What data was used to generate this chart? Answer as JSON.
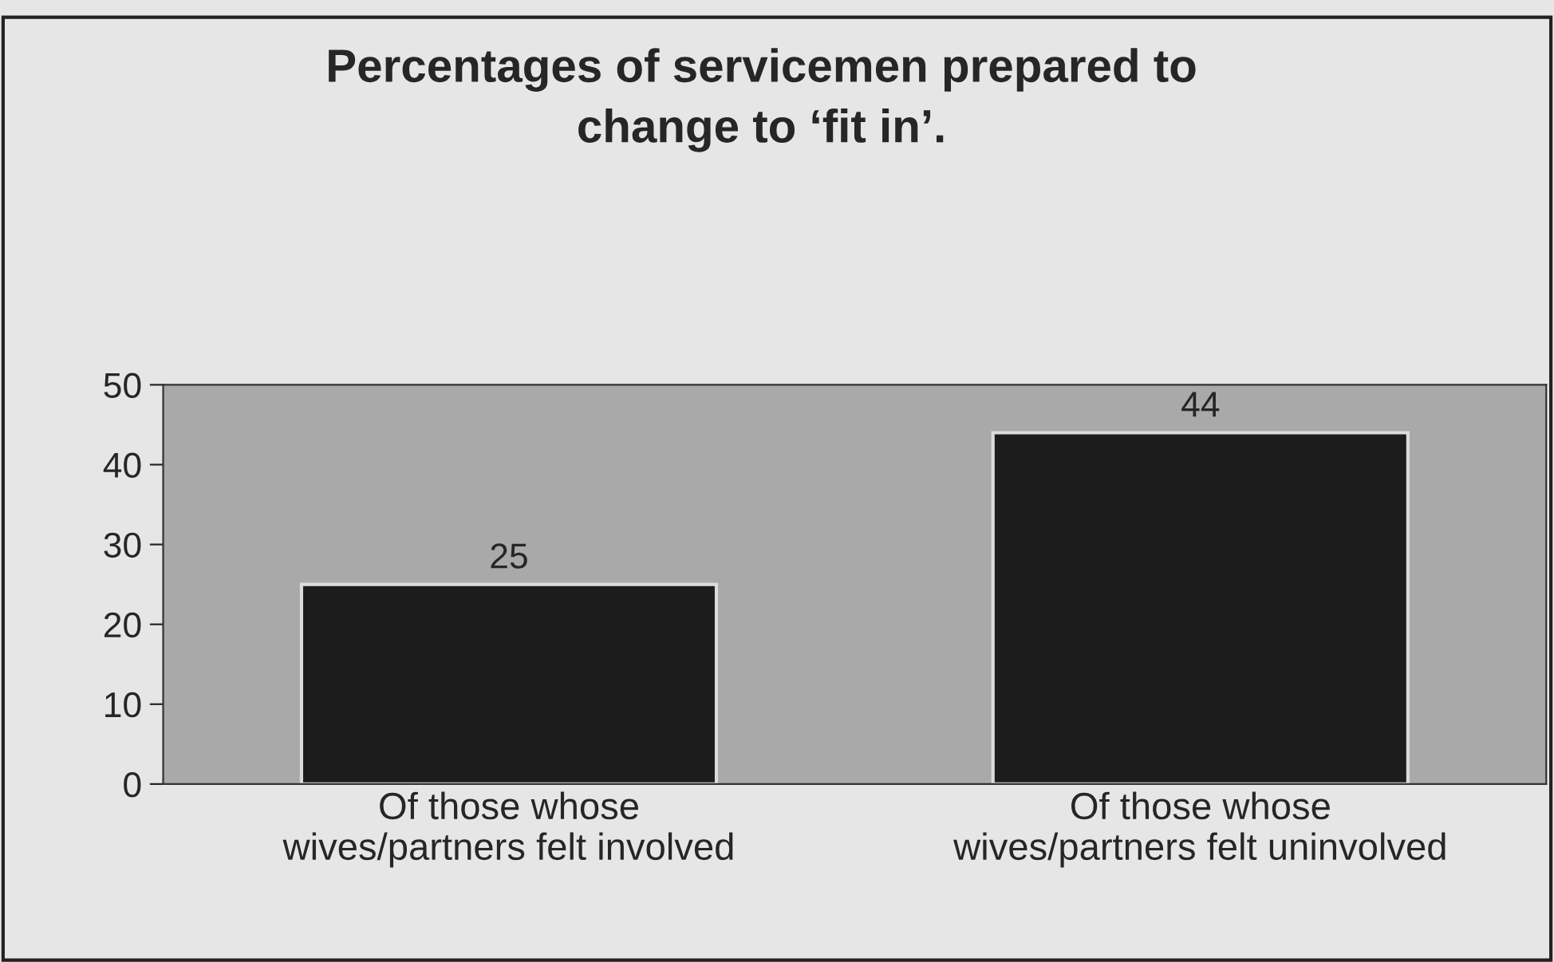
{
  "chart_data": {
    "type": "bar",
    "title": "Percentages of servicemen prepared to\nchange to ‘fit in’.",
    "categories": [
      "Of those whose\nwives/partners felt involved",
      "Of those whose\nwives/partners felt uninvolved"
    ],
    "values": [
      25,
      44
    ],
    "color": "#1c1c1c",
    "ylim": [
      0,
      50
    ],
    "yticks": [
      0,
      10,
      20,
      30,
      40,
      50
    ],
    "grid": false,
    "data_labels": true
  }
}
